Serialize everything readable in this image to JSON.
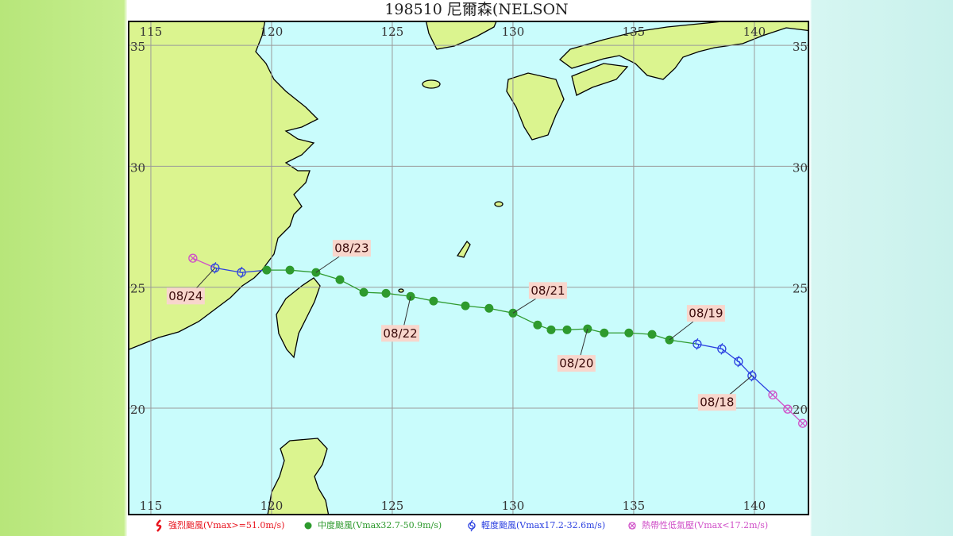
{
  "title": "198510 尼爾森(NELSON",
  "map": {
    "lonlim": [
      114.08,
      142.24
    ],
    "latlim": [
      15.6,
      35.99
    ],
    "lonticks": [
      115,
      120,
      125,
      130,
      135,
      140
    ],
    "latticks": [
      20,
      25,
      30,
      35
    ]
  },
  "legend": [
    {
      "label": "強烈颱風(Vmax>=51.0m/s)",
      "color": "#e8141e"
    },
    {
      "label": "中度颱風(Vmax32.7-50.9m/s)",
      "color": "#2e9a2e"
    },
    {
      "label": "輕度颱風(Vmax17.2-32.6m/s)",
      "color": "#2a3fe0"
    },
    {
      "label": "熱帶性低氣壓(Vmax<17.2m/s)",
      "color": "#d050c8"
    }
  ],
  "track": [
    {
      "lon": 142.0,
      "lat": 19.37,
      "color": "#d050c8"
    },
    {
      "lon": 141.38,
      "lat": 19.96,
      "color": "#d050c8"
    },
    {
      "lon": 140.76,
      "lat": 20.55,
      "color": "#d050c8"
    },
    {
      "lon": 139.9,
      "lat": 21.34,
      "color": "#2a3fe0",
      "date": "08/18"
    },
    {
      "lon": 139.34,
      "lat": 21.93,
      "color": "#2a3fe0"
    },
    {
      "lon": 138.65,
      "lat": 22.45,
      "color": "#2a3fe0"
    },
    {
      "lon": 137.63,
      "lat": 22.65,
      "color": "#2a3fe0"
    },
    {
      "lon": 136.48,
      "lat": 22.82,
      "color": "#2e9a2e",
      "date": "08/19"
    },
    {
      "lon": 135.76,
      "lat": 23.05,
      "color": "#2e9a2e"
    },
    {
      "lon": 134.8,
      "lat": 23.11,
      "color": "#2e9a2e"
    },
    {
      "lon": 133.78,
      "lat": 23.11,
      "color": "#2e9a2e"
    },
    {
      "lon": 133.09,
      "lat": 23.28,
      "color": "#2e9a2e",
      "date": "08/20"
    },
    {
      "lon": 132.24,
      "lat": 23.24,
      "color": "#2e9a2e"
    },
    {
      "lon": 131.58,
      "lat": 23.24,
      "color": "#2e9a2e"
    },
    {
      "lon": 131.02,
      "lat": 23.44,
      "color": "#2e9a2e"
    },
    {
      "lon": 130.0,
      "lat": 23.93,
      "color": "#2e9a2e",
      "date": "08/21"
    },
    {
      "lon": 129.01,
      "lat": 24.13,
      "color": "#2e9a2e"
    },
    {
      "lon": 128.03,
      "lat": 24.23,
      "color": "#2e9a2e"
    },
    {
      "lon": 126.71,
      "lat": 24.43,
      "color": "#2e9a2e"
    },
    {
      "lon": 125.76,
      "lat": 24.62,
      "color": "#2e9a2e",
      "date": "08/22"
    },
    {
      "lon": 124.74,
      "lat": 24.75,
      "color": "#2e9a2e"
    },
    {
      "lon": 123.82,
      "lat": 24.79,
      "color": "#2e9a2e"
    },
    {
      "lon": 122.83,
      "lat": 25.31,
      "color": "#2e9a2e"
    },
    {
      "lon": 121.84,
      "lat": 25.61,
      "color": "#2e9a2e",
      "date": "08/23"
    },
    {
      "lon": 120.76,
      "lat": 25.71,
      "color": "#2e9a2e"
    },
    {
      "lon": 119.8,
      "lat": 25.71,
      "color": "#2e9a2e"
    },
    {
      "lon": 118.75,
      "lat": 25.61,
      "color": "#2a3fe0"
    },
    {
      "lon": 117.66,
      "lat": 25.8,
      "color": "#2a3fe0",
      "date": "08/24"
    },
    {
      "lon": 116.74,
      "lat": 26.2,
      "color": "#d050c8"
    }
  ]
}
